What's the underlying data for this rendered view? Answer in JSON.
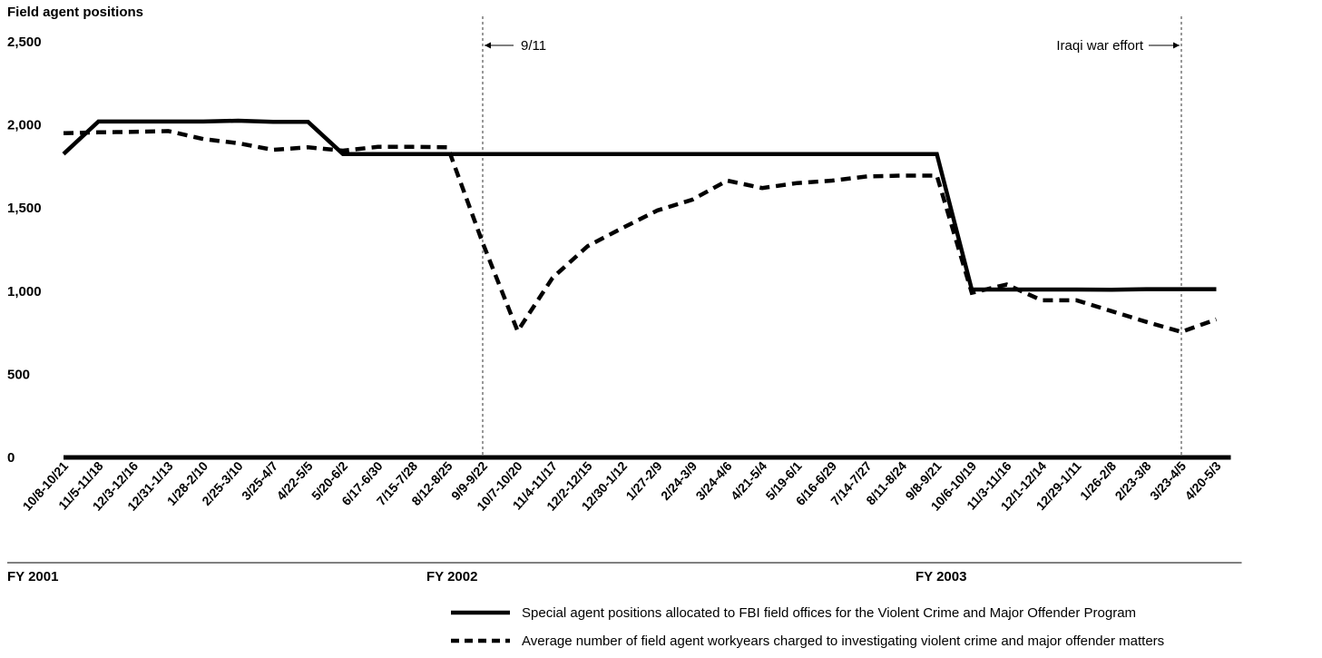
{
  "chart_data": {
    "type": "line",
    "ylabel": "Field agent positions",
    "ylim": [
      0,
      2500
    ],
    "yticks": [
      0,
      500,
      1000,
      1500,
      2000,
      2500
    ],
    "ytick_labels": [
      "0",
      "500",
      "1,000",
      "1,500",
      "2,000",
      "2,500"
    ],
    "categories": [
      "10/8-10/21",
      "11/5-11/18",
      "12/3-12/16",
      "12/31-1/13",
      "1/28-2/10",
      "2/25-3/10",
      "3/25-4/7",
      "4/22-5/5",
      "5/20-6/2",
      "6/17-6/30",
      "7/15-7/28",
      "8/12-8/25",
      "9/9-9/22",
      "10/7-10/20",
      "11/4-11/17",
      "12/2-12/15",
      "12/30-1/12",
      "1/27-2/9",
      "2/24-3/9",
      "3/24-4/6",
      "4/21-5/4",
      "5/19-6/1",
      "6/16-6/29",
      "7/14-7/27",
      "8/11-8/24",
      "9/8-9/21",
      "10/6-10/19",
      "11/3-11/16",
      "12/1-12/14",
      "12/29-1/11",
      "1/26-2/8",
      "2/23-3/8",
      "3/23-4/5",
      "4/20-5/3"
    ],
    "series": [
      {
        "name": "Special agent positions allocated to FBI field offices for the Violent Crime and Major Offender Program",
        "style": "solid",
        "x": [
          0,
          1,
          2,
          3,
          4,
          5,
          6,
          7,
          8,
          9,
          10,
          11,
          12,
          13,
          14,
          15,
          16,
          17,
          18,
          19,
          20,
          21,
          22,
          23,
          24,
          25,
          26,
          27,
          28,
          29,
          30,
          31,
          32,
          33
        ],
        "values": [
          1825,
          2020,
          2020,
          2020,
          2020,
          2025,
          2018,
          2018,
          1825,
          1825,
          1825,
          1825,
          1825,
          1825,
          1825,
          1825,
          1825,
          1825,
          1825,
          1825,
          1825,
          1825,
          1825,
          1825,
          1825,
          1825,
          1010,
          1010,
          1010,
          1010,
          1008,
          1012,
          1012,
          1012
        ]
      },
      {
        "name": "Average number of field agent workyears charged to investigating violent crime and major offender matters",
        "style": "dashed",
        "x": [
          0,
          1,
          2,
          3,
          4,
          5,
          6,
          7,
          8,
          9,
          10,
          11,
          12,
          13,
          14,
          15,
          16,
          17,
          18,
          19,
          20,
          21,
          22,
          23,
          24,
          25,
          26,
          27,
          28,
          29,
          30,
          31,
          32,
          33
        ],
        "values": [
          1950,
          1955,
          1958,
          1963,
          1915,
          1890,
          1850,
          1865,
          1845,
          1868,
          1868,
          1865,
          1290,
          760,
          1080,
          1270,
          1380,
          1485,
          1550,
          1665,
          1620,
          1650,
          1665,
          1690,
          1695,
          1695,
          990,
          1040,
          945,
          945,
          880,
          815,
          755,
          830
        ]
      }
    ],
    "fiscal_years": [
      {
        "label": "FY 2001",
        "start": 0,
        "end": 11
      },
      {
        "label": "FY 2002",
        "start": 12,
        "end": 25
      },
      {
        "label": "FY 2003",
        "start": 26,
        "end": 33
      }
    ],
    "annotations": [
      {
        "label": "9/11",
        "at_x": 12,
        "side": "right"
      },
      {
        "label": "Iraqi war effort",
        "at_x": 32,
        "side": "left"
      }
    ],
    "grid": false,
    "legend_position": "bottom"
  }
}
